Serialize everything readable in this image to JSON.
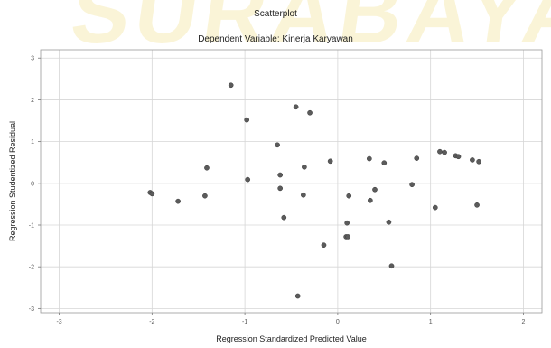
{
  "watermark": "SURABAYA",
  "chart_data": {
    "type": "scatter",
    "title": "Scatterplot",
    "subtitle": "Dependent Variable: Kinerja Karyawan",
    "xlabel": "Regression Standardized Predicted Value",
    "ylabel": "Regression Studentized Residual",
    "xlim": [
      -3.2,
      2.2
    ],
    "ylim": [
      -3.1,
      3.2
    ],
    "xticks": [
      -3,
      -2,
      -1,
      0,
      1,
      2
    ],
    "yticks": [
      3,
      2,
      1,
      0,
      -1,
      -2,
      -3
    ],
    "grid": true,
    "marker_color": "#5b5b5b",
    "points": [
      {
        "x": -2.02,
        "y": -0.22
      },
      {
        "x": -2.0,
        "y": -0.25
      },
      {
        "x": -1.72,
        "y": -0.43
      },
      {
        "x": -1.43,
        "y": -0.3
      },
      {
        "x": -1.41,
        "y": 0.37
      },
      {
        "x": -1.15,
        "y": 2.35
      },
      {
        "x": -0.98,
        "y": 1.52
      },
      {
        "x": -0.97,
        "y": 0.09
      },
      {
        "x": -0.65,
        "y": 0.92
      },
      {
        "x": -0.62,
        "y": 0.2
      },
      {
        "x": -0.62,
        "y": -0.12
      },
      {
        "x": -0.58,
        "y": -0.82
      },
      {
        "x": -0.45,
        "y": 1.83
      },
      {
        "x": -0.43,
        "y": -2.7
      },
      {
        "x": -0.37,
        "y": -0.28
      },
      {
        "x": -0.36,
        "y": 0.39
      },
      {
        "x": -0.3,
        "y": 1.69
      },
      {
        "x": -0.15,
        "y": -1.48
      },
      {
        "x": -0.08,
        "y": 0.53
      },
      {
        "x": 0.09,
        "y": -1.28
      },
      {
        "x": 0.1,
        "y": -0.95
      },
      {
        "x": 0.11,
        "y": -1.28
      },
      {
        "x": 0.12,
        "y": -0.3
      },
      {
        "x": 0.34,
        "y": 0.59
      },
      {
        "x": 0.35,
        "y": -0.41
      },
      {
        "x": 0.4,
        "y": -0.15
      },
      {
        "x": 0.5,
        "y": 0.49
      },
      {
        "x": 0.55,
        "y": -0.93
      },
      {
        "x": 0.58,
        "y": -1.98
      },
      {
        "x": 0.8,
        "y": -0.03
      },
      {
        "x": 0.85,
        "y": 0.6
      },
      {
        "x": 1.05,
        "y": -0.58
      },
      {
        "x": 1.1,
        "y": 0.76
      },
      {
        "x": 1.15,
        "y": 0.74
      },
      {
        "x": 1.27,
        "y": 0.66
      },
      {
        "x": 1.3,
        "y": 0.64
      },
      {
        "x": 1.45,
        "y": 0.56
      },
      {
        "x": 1.5,
        "y": -0.52
      },
      {
        "x": 1.52,
        "y": 0.52
      }
    ]
  }
}
